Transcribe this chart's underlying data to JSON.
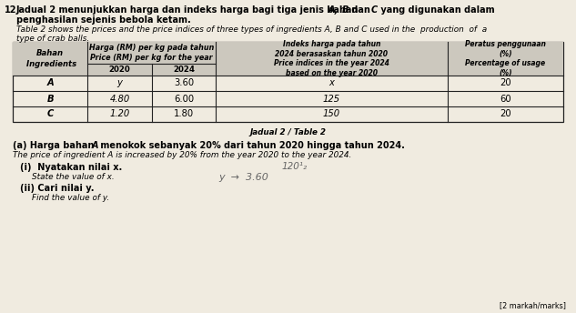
{
  "bg_color": "#f0ebe0",
  "table_header_bg": "#ccc8be",
  "table_row_bg": "#f0ebe0",
  "table_border_color": "#222222",
  "rows": [
    [
      "A",
      "y",
      "3.60",
      "x",
      "20"
    ],
    [
      "B",
      "4.80",
      "6.00",
      "125",
      "60"
    ],
    [
      "C",
      "1.20",
      "1.80",
      "150",
      "20"
    ]
  ],
  "table_caption": "Jadual 2 / Table 2",
  "footer": "[2 markah/marks]"
}
